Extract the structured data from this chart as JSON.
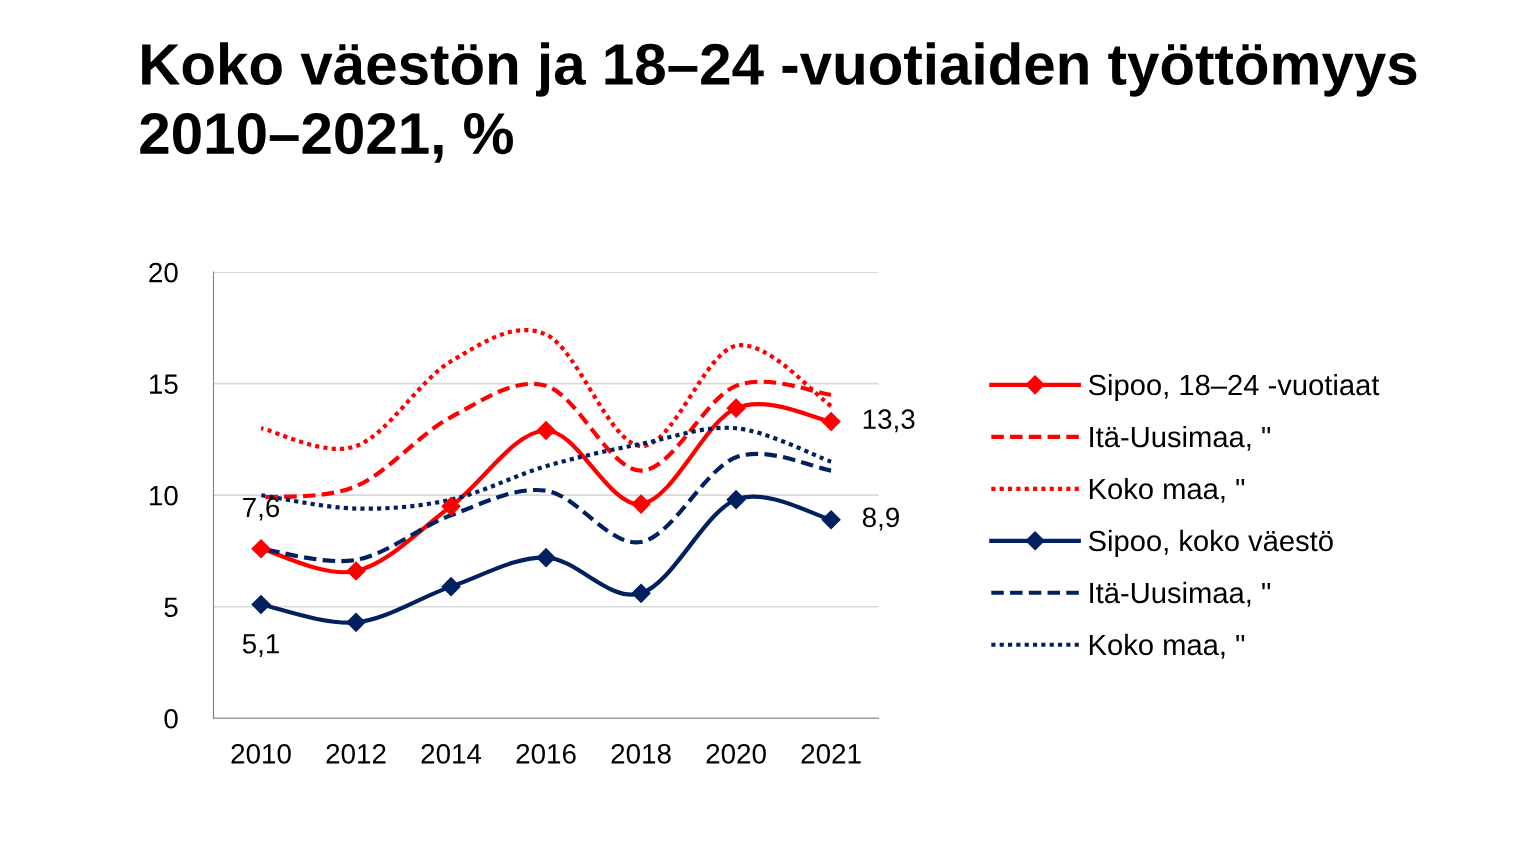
{
  "chart_data": {
    "type": "line",
    "title": "Koko väestön ja 18–24 -vuotiaiden työttömyys 2010–2021, %",
    "categories": [
      "2010",
      "2012",
      "2014",
      "2016",
      "2018",
      "2020",
      "2021"
    ],
    "series": [
      {
        "name": "Sipoo, 18–24 -vuotiaat",
        "color": "#ff0000",
        "marker": "diamond",
        "line_style": "solid",
        "values": [
          7.6,
          6.6,
          9.5,
          12.9,
          9.6,
          13.9,
          13.3
        ],
        "value_labels": [
          "7,6",
          null,
          null,
          null,
          null,
          null,
          "13,3"
        ]
      },
      {
        "name": "Itä-Uusimaa, \"",
        "color": "#ff0000",
        "marker": "none",
        "line_style": "dashed",
        "values": [
          9.9,
          10.4,
          13.5,
          14.9,
          11.1,
          14.9,
          14.5
        ]
      },
      {
        "name": "Koko maa, \"",
        "color": "#ff0000",
        "marker": "none",
        "line_style": "dotted",
        "values": [
          13.0,
          12.2,
          16.0,
          17.2,
          12.2,
          16.7,
          14.0
        ]
      },
      {
        "name": "Sipoo, koko väestö",
        "color": "#002060",
        "marker": "diamond",
        "line_style": "solid",
        "values": [
          5.1,
          4.3,
          5.9,
          7.2,
          5.6,
          9.8,
          8.9
        ],
        "value_labels": [
          "5,1",
          null,
          null,
          null,
          null,
          null,
          "8,9"
        ]
      },
      {
        "name": "Itä-Uusimaa, \"",
        "color": "#002060",
        "marker": "none",
        "line_style": "dashed",
        "values": [
          7.6,
          7.1,
          9.1,
          10.2,
          7.9,
          11.7,
          11.1
        ]
      },
      {
        "name": "Koko maa, \"",
        "color": "#002060",
        "marker": "none",
        "line_style": "dotted",
        "values": [
          10.0,
          9.4,
          9.8,
          11.3,
          12.3,
          13.0,
          11.5
        ]
      }
    ],
    "ylim": [
      0,
      20
    ],
    "yticks": [
      0,
      5,
      10,
      15,
      20
    ],
    "grid": "y",
    "legend": "right"
  }
}
